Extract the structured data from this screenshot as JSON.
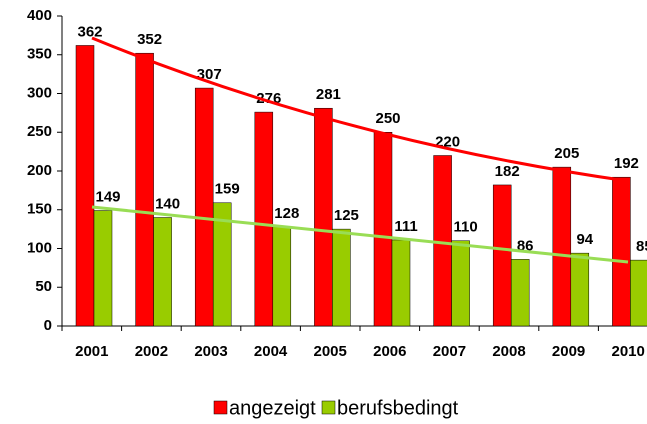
{
  "chart_data": {
    "type": "bar",
    "categories": [
      "2001",
      "2002",
      "2003",
      "2004",
      "2005",
      "2006",
      "2007",
      "2008",
      "2009",
      "2010"
    ],
    "series": [
      {
        "name": "angezeigt",
        "color": "#ff0000",
        "values": [
          362,
          352,
          307,
          276,
          281,
          250,
          220,
          182,
          205,
          192
        ]
      },
      {
        "name": "berufsbedingt",
        "color": "#99cc00",
        "values": [
          149,
          140,
          159,
          128,
          125,
          111,
          110,
          86,
          94,
          85
        ]
      }
    ],
    "ylim": [
      0,
      400
    ],
    "yticks": [
      0,
      50,
      100,
      150,
      200,
      250,
      300,
      350,
      400
    ],
    "grid": false,
    "legend": "bottom"
  }
}
